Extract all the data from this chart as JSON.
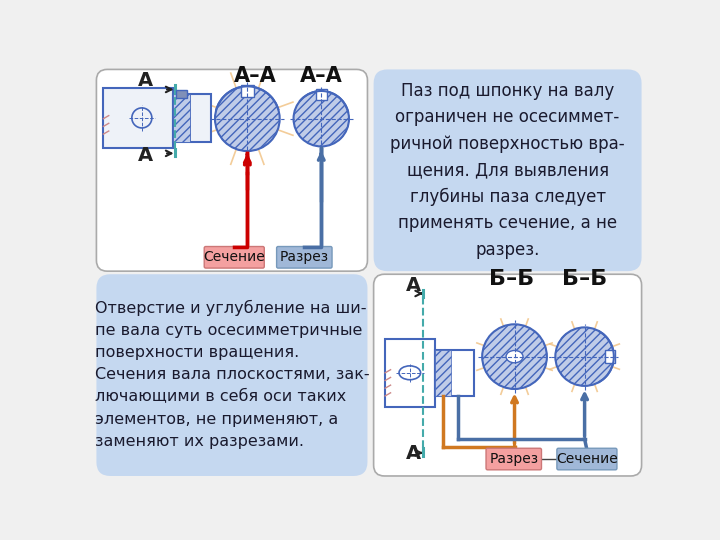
{
  "bg_color": "#f0f0f0",
  "panel_white": "#ffffff",
  "panel_blue": "#c5d8f0",
  "text_color": "#1a1a2e",
  "top_right_text": "Паз под шпонку на валу\nограничен не осесиммет-\nричной поверхностью вра-\nщения. Для выявления\nглубины паза следует\nприменять сечение, а не\nразрез.",
  "bottom_left_text": "Отверстие и углубление на ши-\nпе вала суть осесимметричные\nповерхности вращения.\nСечения вала плоскостями, зак-\nлючающими в себя оси таких\nэлементов, не применяют, а\nзаменяют их разрезами.",
  "label_sechenie": "Сечение",
  "label_razrez": "Разрез",
  "label_razrez2": "Разрез",
  "label_sechenie2": "Сечение",
  "blue_dark": "#2244aa",
  "blue_mid": "#4472c4",
  "blue_line": "#4466bb",
  "red_color": "#cc0000",
  "orange_color": "#d07820",
  "steel_blue": "#4a6fa5",
  "hatch_fill": "#c0cce8",
  "cyan_line": "#44aaaa",
  "label_red_bg": "#f4a0a0",
  "label_blue_bg": "#a0b8d8",
  "cross_color": "#f0c080"
}
